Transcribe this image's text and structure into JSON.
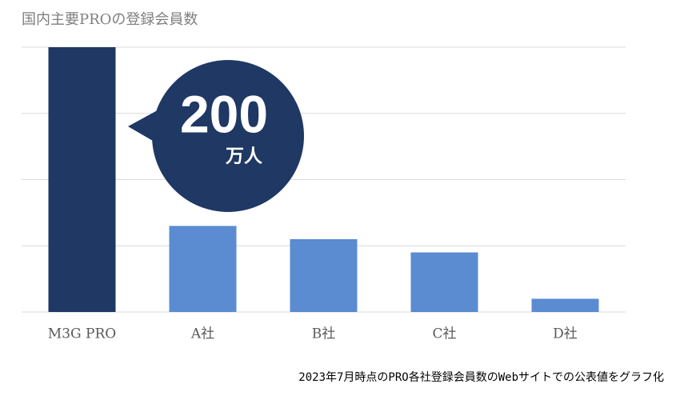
{
  "chart_data": {
    "type": "bar",
    "title": "国内主要PROの登録会員数",
    "categories": [
      "M3G PRO",
      "A社",
      "B社",
      "C社",
      "D社"
    ],
    "values": [
      200,
      65,
      55,
      45,
      10
    ],
    "colors": [
      "#1f3864",
      "#5b8bd0",
      "#5b8bd0",
      "#5b8bd0",
      "#5b8bd0"
    ],
    "ylim": [
      0,
      200
    ],
    "yticks": [
      0,
      50,
      100,
      150,
      200
    ],
    "grid": true,
    "annotation": {
      "value_text": "200",
      "unit_text": "万人"
    },
    "footnote": "2023年7月時点のPRO各社登録会員数のWebサイトでの公表値をグラフ化"
  }
}
